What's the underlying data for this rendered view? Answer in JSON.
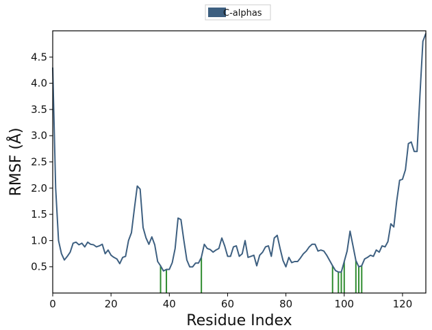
{
  "chart_data": {
    "type": "line",
    "xlabel": "Residue Index",
    "ylabel": "RMSF (Å)",
    "xlim": [
      0,
      128
    ],
    "ylim": [
      0,
      5.0
    ],
    "xticks": [
      0,
      20,
      40,
      60,
      80,
      100,
      120
    ],
    "yticks": [
      0.5,
      1.0,
      1.5,
      2.0,
      2.5,
      3.0,
      3.5,
      4.0,
      4.5
    ],
    "xtick_labels": [
      "0",
      "20",
      "40",
      "60",
      "80",
      "100",
      "120"
    ],
    "ytick_labels": [
      "0.5",
      "1.0",
      "1.5",
      "2.0",
      "2.5",
      "3.0",
      "3.5",
      "4.0",
      "4.5"
    ],
    "grid": false,
    "legend": {
      "position": "top-center",
      "entries": [
        "C-alphas"
      ]
    },
    "series": [
      {
        "name": "C-alphas",
        "color": "#3d5f80",
        "x": [
          0,
          1,
          2,
          3,
          4,
          5,
          6,
          7,
          8,
          9,
          10,
          11,
          12,
          13,
          14,
          15,
          16,
          17,
          18,
          19,
          20,
          21,
          22,
          23,
          24,
          25,
          26,
          27,
          28,
          29,
          30,
          31,
          32,
          33,
          34,
          35,
          36,
          37,
          38,
          39,
          40,
          41,
          42,
          43,
          44,
          45,
          46,
          47,
          48,
          49,
          50,
          51,
          52,
          53,
          54,
          55,
          56,
          57,
          58,
          59,
          60,
          61,
          62,
          63,
          64,
          65,
          66,
          67,
          68,
          69,
          70,
          71,
          72,
          73,
          74,
          75,
          76,
          77,
          78,
          79,
          80,
          81,
          82,
          83,
          84,
          85,
          86,
          87,
          88,
          89,
          90,
          91,
          92,
          93,
          94,
          95,
          96,
          97,
          98,
          99,
          100,
          101,
          102,
          103,
          104,
          105,
          106,
          107,
          108,
          109,
          110,
          111,
          112,
          113,
          114,
          115,
          116,
          117,
          118,
          119,
          120,
          121,
          122,
          123,
          124,
          125,
          126,
          127,
          128
        ],
        "values": [
          4.3,
          2.0,
          1.0,
          0.75,
          0.63,
          0.7,
          0.78,
          0.95,
          0.97,
          0.92,
          0.95,
          0.88,
          0.97,
          0.93,
          0.92,
          0.88,
          0.9,
          0.93,
          0.75,
          0.82,
          0.72,
          0.68,
          0.65,
          0.56,
          0.68,
          0.7,
          1.0,
          1.15,
          1.6,
          2.04,
          1.98,
          1.25,
          1.05,
          0.93,
          1.07,
          0.92,
          0.6,
          0.52,
          0.42,
          0.45,
          0.45,
          0.58,
          0.85,
          1.43,
          1.4,
          1.0,
          0.63,
          0.5,
          0.5,
          0.57,
          0.57,
          0.68,
          0.93,
          0.85,
          0.83,
          0.78,
          0.82,
          0.85,
          1.05,
          0.9,
          0.7,
          0.7,
          0.88,
          0.9,
          0.7,
          0.75,
          1.0,
          0.68,
          0.7,
          0.72,
          0.52,
          0.72,
          0.78,
          0.88,
          0.9,
          0.7,
          1.05,
          1.1,
          0.85,
          0.62,
          0.5,
          0.68,
          0.58,
          0.6,
          0.6,
          0.67,
          0.75,
          0.8,
          0.88,
          0.93,
          0.93,
          0.8,
          0.82,
          0.8,
          0.72,
          0.62,
          0.52,
          0.43,
          0.4,
          0.4,
          0.6,
          0.8,
          1.18,
          0.9,
          0.62,
          0.5,
          0.52,
          0.65,
          0.68,
          0.72,
          0.7,
          0.82,
          0.78,
          0.9,
          0.88,
          0.98,
          1.32,
          1.26,
          1.75,
          2.15,
          2.17,
          2.35,
          2.85,
          2.88,
          2.7,
          2.7,
          3.8,
          4.8,
          4.95
        ]
      }
    ],
    "markers": {
      "color": "#2e8b2e",
      "positions": [
        37,
        39,
        51,
        96,
        98,
        99,
        100,
        104,
        105,
        106
      ]
    }
  }
}
